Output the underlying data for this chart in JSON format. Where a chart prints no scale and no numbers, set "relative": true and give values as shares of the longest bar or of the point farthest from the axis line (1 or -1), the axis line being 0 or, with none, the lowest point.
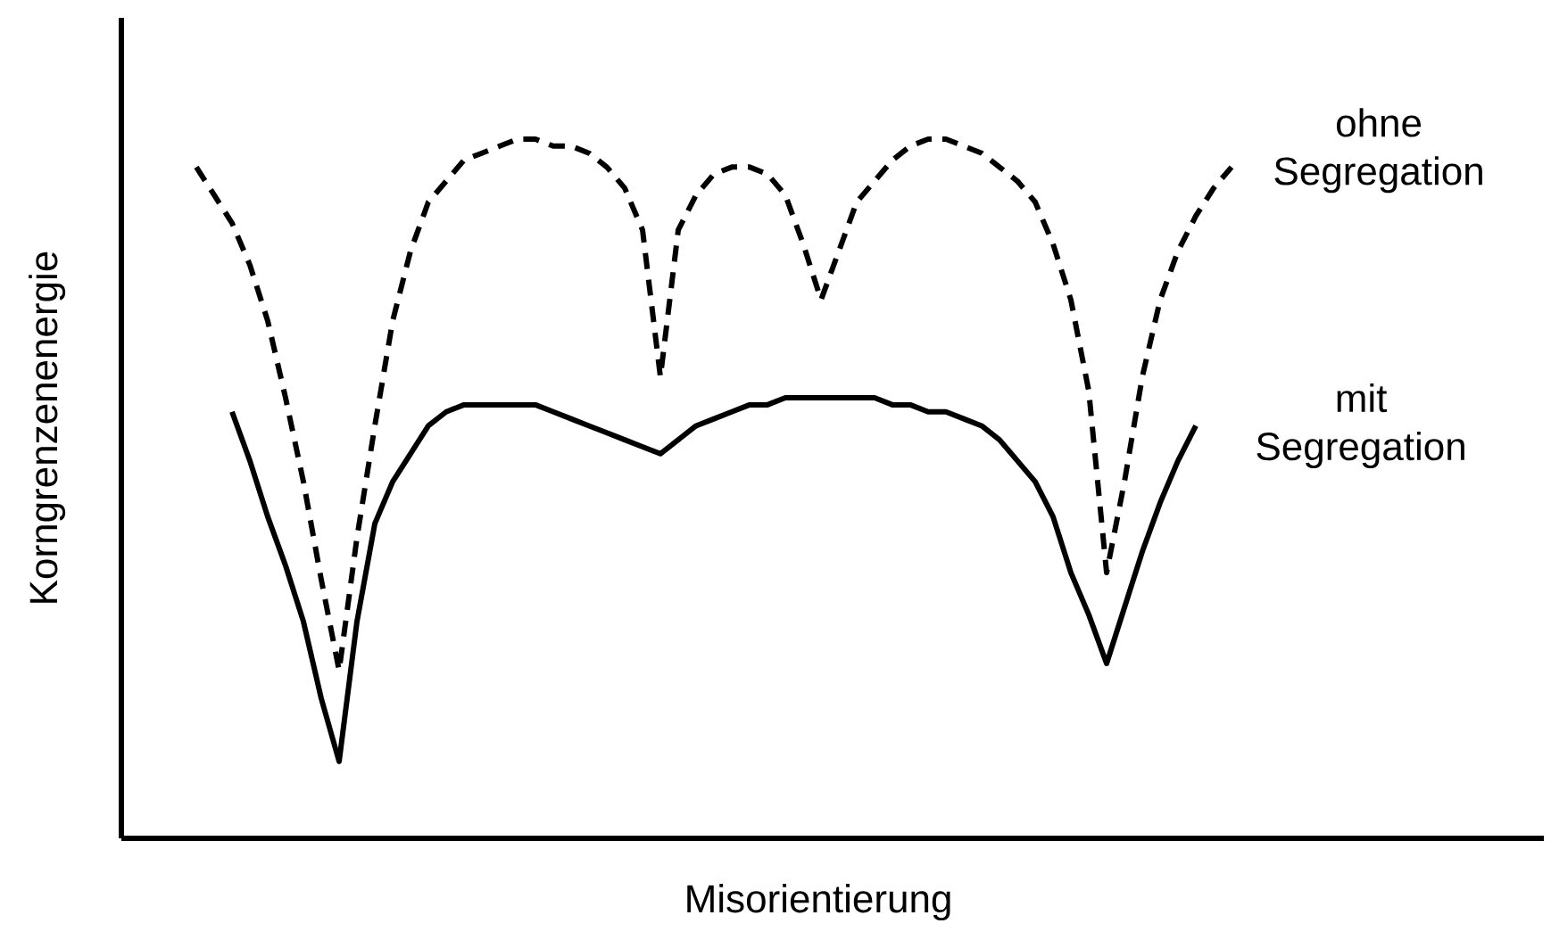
{
  "chart_data": {
    "type": "line",
    "relative": true,
    "xlabel": "Misorientierung",
    "ylabel": "Korngrenzenenergie",
    "categories": [
      null,
      null,
      null,
      null,
      null,
      null,
      null,
      null,
      null,
      null,
      null,
      null,
      null,
      null,
      null,
      null,
      null,
      null,
      null,
      null,
      null,
      null,
      null,
      null,
      null,
      null,
      null,
      null,
      null,
      null,
      null,
      null,
      null,
      null,
      null,
      null,
      null,
      null,
      null,
      null,
      null,
      null,
      null,
      null,
      null,
      null,
      null,
      null,
      null,
      null,
      null,
      null,
      null,
      null,
      null,
      null,
      null,
      null,
      null,
      null,
      null
    ],
    "series": [
      {
        "name": "ohne Segregation",
        "color": "#000000",
        "line_style": "dashed",
        "values": [
          null,
          0.96,
          0.92,
          0.88,
          0.82,
          0.74,
          0.63,
          0.51,
          0.37,
          0.24,
          0.43,
          0.59,
          0.74,
          0.84,
          0.91,
          0.94,
          0.97,
          0.98,
          0.99,
          1,
          1,
          0.99,
          0.99,
          0.98,
          0.96,
          0.93,
          0.87,
          0.66,
          0.87,
          0.92,
          0.95,
          0.96,
          0.96,
          0.95,
          0.92,
          0.85,
          0.77,
          0.84,
          0.91,
          0.94,
          0.97,
          0.99,
          1,
          1,
          0.99,
          0.98,
          0.96,
          0.94,
          0.91,
          0.85,
          0.77,
          0.64,
          0.38,
          0.51,
          0.66,
          0.77,
          0.84,
          0.89,
          0.93,
          0.96,
          null
        ]
      },
      {
        "name": "mit Segregation",
        "color": "#000000",
        "line_style": "solid",
        "values": [
          null,
          null,
          null,
          0.61,
          0.54,
          0.46,
          0.39,
          0.31,
          0.2,
          0.11,
          0.31,
          0.45,
          0.51,
          0.55,
          0.59,
          0.61,
          0.62,
          0.62,
          0.62,
          0.62,
          0.62,
          0.61,
          0.6,
          0.59,
          0.58,
          0.57,
          0.56,
          0.55,
          0.57,
          0.59,
          0.6,
          0.61,
          0.62,
          0.62,
          0.63,
          0.63,
          0.63,
          0.63,
          0.63,
          0.63,
          0.62,
          0.62,
          0.61,
          0.61,
          0.6,
          0.59,
          0.57,
          0.54,
          0.51,
          0.46,
          0.38,
          0.32,
          0.25,
          0.33,
          0.41,
          0.48,
          0.54,
          0.59,
          null,
          null,
          null
        ]
      }
    ]
  }
}
